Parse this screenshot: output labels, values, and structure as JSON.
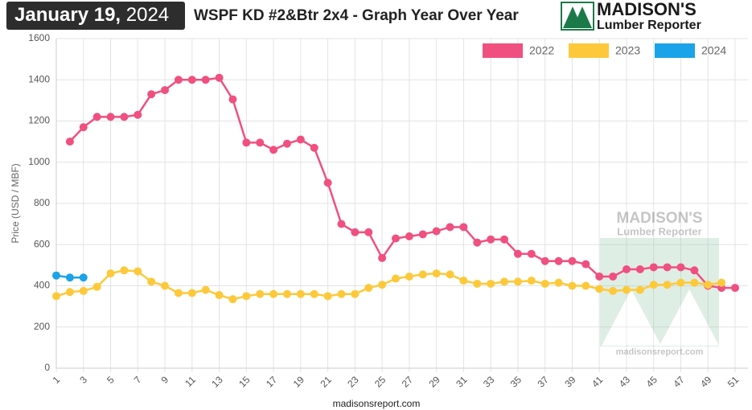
{
  "header": {
    "date": "January 19,",
    "year": "2024"
  },
  "logo": {
    "name": "MADISON'S",
    "sub": "Lumber Reporter"
  },
  "watermark": {
    "name": "MADISON'S",
    "sub": "Lumber Reporter",
    "url": "madisonsreport.com"
  },
  "footer": "madisonsreport.com",
  "chart_data": {
    "type": "line",
    "title": "WSPF KD #2&Btr 2x4 - Graph Year Over Year",
    "y_label": "Price (USD / MBF)",
    "categories": [
      1,
      null,
      3,
      null,
      5,
      null,
      7,
      null,
      9,
      null,
      11,
      null,
      13,
      null,
      15,
      null,
      17,
      null,
      19,
      null,
      21,
      null,
      23,
      null,
      25,
      null,
      27,
      null,
      29,
      null,
      31,
      null,
      33,
      null,
      35,
      null,
      37,
      null,
      39,
      null,
      41,
      null,
      43,
      null,
      45,
      null,
      47,
      null,
      49,
      null,
      51
    ],
    "ylim": [
      0,
      1600
    ],
    "yticks": [
      0,
      200,
      400,
      600,
      800,
      1000,
      1200,
      1400,
      1600
    ],
    "grid": true,
    "legend": "top-right",
    "series": [
      {
        "name": "2022",
        "color": "#f0507f",
        "values": [
          null,
          1100,
          1170,
          1220,
          1220,
          1220,
          1230,
          1330,
          1350,
          1400,
          1400,
          1400,
          1410,
          1305,
          1095,
          1095,
          1060,
          1090,
          1110,
          1070,
          900,
          700,
          660,
          660,
          535,
          630,
          640,
          650,
          665,
          685,
          685,
          610,
          625,
          625,
          555,
          555,
          520,
          520,
          520,
          505,
          445,
          445,
          480,
          480,
          490,
          490,
          490,
          475,
          400,
          390,
          390
        ]
      },
      {
        "name": "2023",
        "color": "#fdc93a",
        "values": [
          350,
          370,
          375,
          395,
          460,
          475,
          470,
          420,
          400,
          365,
          365,
          380,
          355,
          335,
          350,
          360,
          360,
          360,
          360,
          360,
          350,
          360,
          360,
          390,
          405,
          435,
          445,
          455,
          460,
          455,
          425,
          410,
          410,
          420,
          420,
          425,
          410,
          415,
          400,
          400,
          385,
          375,
          380,
          380,
          405,
          405,
          415,
          415,
          405,
          415,
          null
        ]
      },
      {
        "name": "2024",
        "color": "#1aa3e8",
        "values": [
          450,
          440,
          440,
          null,
          null,
          null,
          null,
          null,
          null,
          null,
          null,
          null,
          null,
          null,
          null,
          null,
          null,
          null,
          null,
          null,
          null,
          null,
          null,
          null,
          null,
          null,
          null,
          null,
          null,
          null,
          null,
          null,
          null,
          null,
          null,
          null,
          null,
          null,
          null,
          null,
          null,
          null,
          null,
          null,
          null,
          null,
          null,
          null,
          null,
          null,
          null
        ]
      }
    ]
  }
}
